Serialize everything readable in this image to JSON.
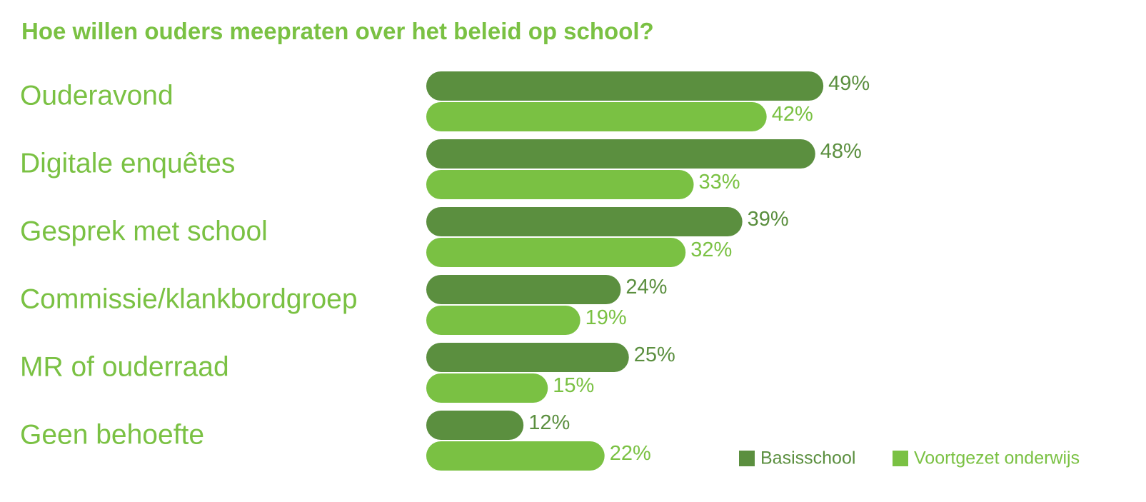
{
  "chart_data": {
    "type": "bar",
    "orientation": "horizontal",
    "title": "Hoe willen ouders meepraten over het beleid op school?",
    "categories": [
      "Ouderavond",
      "Digitale enquêtes",
      "Gesprek met school",
      "Commissie/klankbordgroep",
      "MR of ouderraad",
      "Geen behoefte"
    ],
    "series": [
      {
        "name": "Basisschool",
        "color": "#5b8f3f",
        "values": [
          49,
          48,
          39,
          24,
          25,
          12
        ],
        "labels": [
          "49%",
          "48%",
          "39%",
          "24%",
          "25%",
          "12%"
        ]
      },
      {
        "name": "Voortgezet onderwijs",
        "color": "#7ac143",
        "values": [
          42,
          33,
          32,
          19,
          15,
          22
        ],
        "labels": [
          "42%",
          "33%",
          "32%",
          "19%",
          "15%",
          "22%"
        ]
      }
    ],
    "value_unit": "%",
    "xlim": [
      0,
      49
    ],
    "grid": false,
    "axes_visible": false,
    "legend_position": "bottom-right",
    "colors": {
      "title": "#7ac143",
      "category_label": "#7ac143"
    }
  }
}
